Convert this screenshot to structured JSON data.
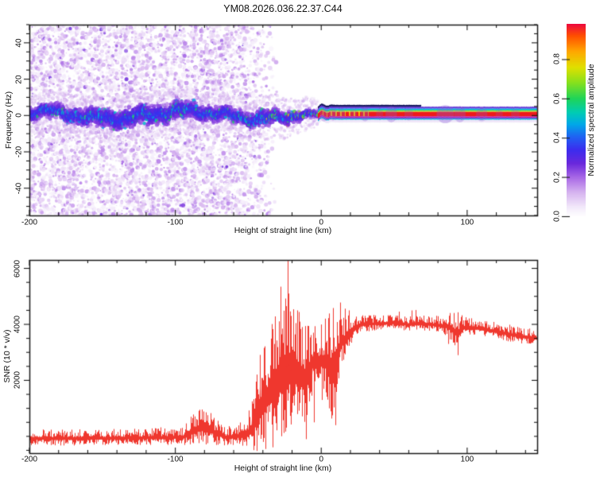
{
  "title": "YM08.2026.036.22.37.C44",
  "colors": {
    "background": "#ffffff",
    "frame": "#1a1a1a",
    "trace_red": "#ef372e",
    "dark_line_navy": "#14145e",
    "fuzz_purple": "#8a5ad8"
  },
  "chart_data": [
    {
      "type": "heatmap",
      "title": "YM08.2026.036.22.37.C44",
      "xlabel": "Height of straight line (km)",
      "ylabel": "Frequency (Hz)",
      "xlim": [
        -200,
        148
      ],
      "ylim": [
        -55,
        50
      ],
      "xticks": [
        "-200",
        "-100",
        "0",
        "100"
      ],
      "xminor": 20,
      "yticks": [
        "40",
        "20",
        "0",
        "-20",
        "-40"
      ],
      "yminor": 5,
      "grid": false,
      "description": "Spectrogram: diffuse lavender noise speckle fills -200 to -57 km fading out by -30 km; a wavy purple-blue band around 0 Hz with cyan and green blobs runs from -200 to -35 km, gains yellow-orange-red cores from -40 to 0 km, then collapses into a thin flat multicolour line (red core, green-cyan edges, navy top line, magenta-cyan underside) from 0 to 148 km with soft purple fuzz bumps near 8, 30, 48, 85, 95 and 110 km",
      "colorbar": {
        "label": "Normalized spectral amplitude",
        "ticks": [
          "0.0",
          "0.2",
          "0.4",
          "0.6",
          "0.8"
        ],
        "max": 0.98,
        "colormap": [
          [
            0.0,
            "#ffffff"
          ],
          [
            0.05,
            "#f2e8fa"
          ],
          [
            0.12,
            "#d8b6f0"
          ],
          [
            0.2,
            "#a868e6"
          ],
          [
            0.27,
            "#6a28dc"
          ],
          [
            0.34,
            "#3c2cee"
          ],
          [
            0.41,
            "#1e66f2"
          ],
          [
            0.47,
            "#00a8e8"
          ],
          [
            0.53,
            "#00ccb4"
          ],
          [
            0.6,
            "#1ed45a"
          ],
          [
            0.68,
            "#84e01e"
          ],
          [
            0.76,
            "#e0e000"
          ],
          [
            0.84,
            "#ffa800"
          ],
          [
            0.92,
            "#ff5000"
          ],
          [
            0.98,
            "#ee0a3c"
          ]
        ]
      },
      "noise_region": {
        "full_until": -57,
        "gone_at": -30,
        "blobs_per_col": 22
      },
      "band": {
        "wavy_until": -2.5,
        "flat_center_hz": 0.7,
        "dark_line_range": [
          -10,
          68
        ],
        "bead_range": [
          0.5,
          34
        ],
        "stripes": [
          {
            "off": 0.0,
            "th": 9.0,
            "color": "#e2d2f4",
            "alpha": 0.5
          },
          {
            "off": 4.6,
            "th": 1.1,
            "color": "#14145e",
            "alpha": 1.0,
            "range": [
              -10,
              68
            ]
          },
          {
            "off": 3.6,
            "th": 1.0,
            "color": "#5c2ed6",
            "alpha": 0.95
          },
          {
            "off": 2.7,
            "th": 0.75,
            "color": "#00b4ee",
            "alpha": 1.0
          },
          {
            "off": 2.05,
            "th": 0.6,
            "color": "#1ed24e",
            "alpha": 1.0
          },
          {
            "off": 1.55,
            "th": 0.45,
            "color": "#d8e000",
            "alpha": 1.0
          },
          {
            "off": 0.1,
            "th": 2.4,
            "color": "#ee1a1a",
            "alpha": 1.0,
            "core": true
          },
          {
            "off": -1.45,
            "th": 0.7,
            "color": "#cc1e96",
            "alpha": 1.0
          },
          {
            "off": -2.1,
            "th": 0.6,
            "color": "#6c30d2",
            "alpha": 1.0
          },
          {
            "off": -2.7,
            "th": 0.55,
            "color": "#00b4d8",
            "alpha": 1.0
          }
        ],
        "bead_gap_color": "#ffb400",
        "fuzz_bumps": [
          [
            2,
            3,
            4,
            0.3
          ],
          [
            8,
            3,
            3.5,
            0.3
          ],
          [
            14,
            2.5,
            3,
            0.25
          ],
          [
            22,
            2.5,
            3,
            0.22
          ],
          [
            30,
            3,
            4,
            0.28
          ],
          [
            40,
            2.5,
            3,
            0.22
          ],
          [
            48,
            4,
            4.5,
            0.3
          ],
          [
            60,
            3,
            3.5,
            0.22
          ],
          [
            85,
            6,
            5,
            0.34
          ],
          [
            95,
            4,
            4.5,
            0.3
          ],
          [
            110,
            4,
            4,
            0.26
          ],
          [
            122,
            2.5,
            3,
            0.2
          ],
          [
            133,
            3,
            3,
            0.22
          ]
        ]
      }
    },
    {
      "type": "line",
      "xlabel": "Height of straight line (km)",
      "ylabel": "SNR (10 * v/v)",
      "xlim": [
        -200,
        148
      ],
      "ylim": [
        -600,
        6300
      ],
      "xticks": [
        "-200",
        "-100",
        "0",
        "100"
      ],
      "xminor": 20,
      "yticks": [
        "2000",
        "4000",
        "6000"
      ],
      "yminor": 500,
      "grid": false,
      "description": "Noisy red SNR trace: low (~0-300) from -200 to -55 km with a bump to ~900 near -80 km; wildly spiky 500-5000 between -45 and +10 km with a maximum spike to ~6280 at -23 km and deep dips near -10, 0, +5 and +9 km; climbs to a plateau of ~4000 from +25 to +95 km (notch to ~2900 at ~93 km) then declines gently to ~3500 at 148 km",
      "series": [
        {
          "name": "SNR",
          "color": "#ef372e",
          "anchors": [
            [
              -200,
              -80,
              330
            ],
            [
              -160,
              -80,
              330
            ],
            [
              -120,
              -60,
              340
            ],
            [
              -95,
              -40,
              380
            ],
            [
              -86,
              250,
              700
            ],
            [
              -80,
              300,
              800
            ],
            [
              -74,
              150,
              600
            ],
            [
              -66,
              -40,
              400
            ],
            [
              -56,
              0,
              450
            ],
            [
              -50,
              100,
              700
            ],
            [
              -46,
              400,
              1300
            ],
            [
              -42,
              900,
              2200
            ],
            [
              -38,
              1300,
              2600
            ],
            [
              -34,
              1600,
              2900
            ],
            [
              -30,
              2000,
              3000
            ],
            [
              -26,
              2300,
              3400
            ],
            [
              -23,
              2600,
              3600
            ],
            [
              -20,
              2300,
              2800
            ],
            [
              -16,
              2300,
              2500
            ],
            [
              -12,
              1900,
              2500
            ],
            [
              -9,
              2300,
              1800
            ],
            [
              -6,
              2600,
              1400
            ],
            [
              -3,
              2600,
              1400
            ],
            [
              0,
              2700,
              1500
            ],
            [
              3,
              2600,
              1700
            ],
            [
              6,
              2300,
              2400
            ],
            [
              9,
              2500,
              2200
            ],
            [
              12,
              3100,
              1300
            ],
            [
              15,
              3400,
              1000
            ],
            [
              18,
              3600,
              900
            ],
            [
              21,
              3750,
              700
            ],
            [
              25,
              3950,
              450
            ],
            [
              30,
              4000,
              350
            ],
            [
              40,
              4020,
              320
            ],
            [
              50,
              4050,
              320
            ],
            [
              60,
              3990,
              300
            ],
            [
              70,
              4010,
              320
            ],
            [
              80,
              3960,
              340
            ],
            [
              87,
              3920,
              500
            ],
            [
              93,
              3650,
              900
            ],
            [
              97,
              3870,
              450
            ],
            [
              105,
              3870,
              340
            ],
            [
              115,
              3780,
              340
            ],
            [
              125,
              3680,
              340
            ],
            [
              135,
              3570,
              340
            ],
            [
              148,
              3490,
              360
            ]
          ],
          "spikes": [
            [
              -23.2,
              6280
            ],
            [
              -22.5,
              5100
            ],
            [
              -24.2,
              4650
            ],
            [
              -20.8,
              4300
            ],
            [
              13,
              4780
            ],
            [
              16,
              4560
            ],
            [
              19,
              4500
            ]
          ],
          "dips": [
            [
              -10.3,
              -100
            ],
            [
              -5.2,
              500
            ],
            [
              0.5,
              1300
            ],
            [
              5.5,
              1000
            ],
            [
              9.4,
              400
            ],
            [
              87,
              3300
            ],
            [
              93.5,
              2900
            ]
          ]
        }
      ]
    }
  ]
}
